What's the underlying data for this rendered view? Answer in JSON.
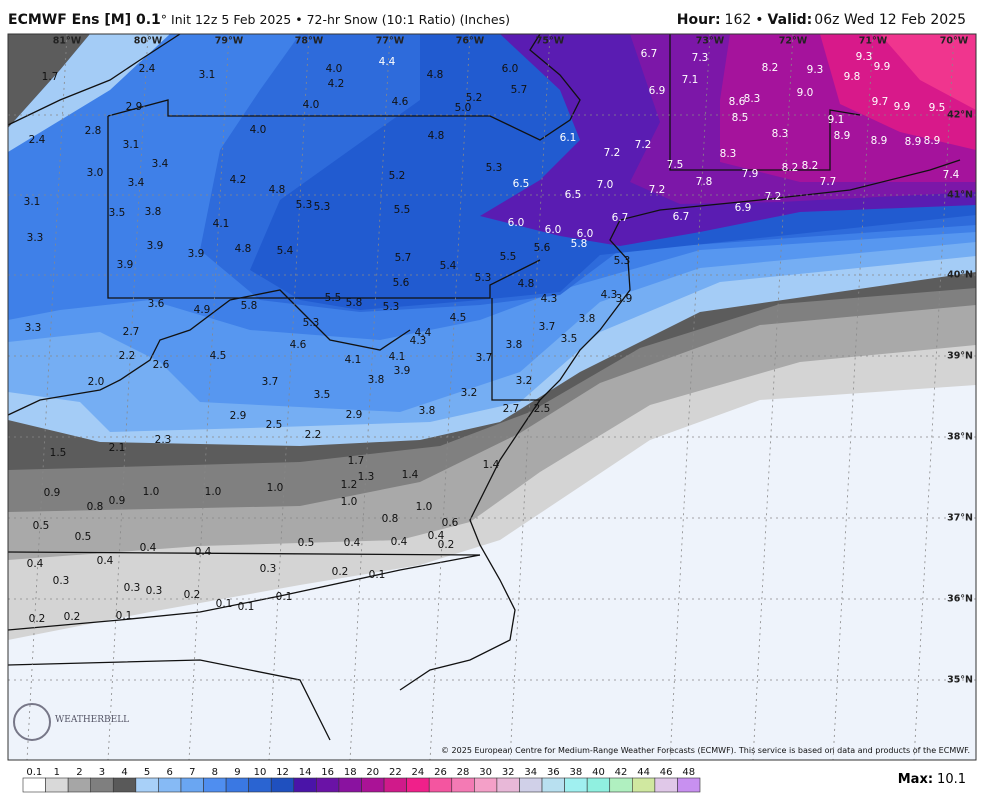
{
  "header": {
    "model": "ECMWF Ens [M] 0.1",
    "init": "° Init 12z 5 Feb 2025 • 72-hr Snow (10:1 Ratio) (Inches)",
    "hour_label": "Hour:",
    "hour": "162",
    "sep": "•",
    "valid_label": "Valid:",
    "valid": "06z Wed 12 Feb 2025"
  },
  "lon_labels": [
    "81°W",
    "80°W",
    "79°W",
    "78°W",
    "77°W",
    "76°W",
    "75°W",
    "73°W",
    "72°W",
    "71°W",
    "70°W"
  ],
  "lat_labels": [
    "42°N",
    "41°N",
    "40°N",
    "39°N",
    "38°N",
    "37°N",
    "36°N",
    "35°N"
  ],
  "map_labels": [
    "1.7",
    "2.4",
    "3.1",
    "4.0",
    "4.4",
    "4.8",
    "6.0",
    "6.7",
    "7.3",
    "8.2",
    "9.3",
    "9.9",
    "4.2",
    "5.7",
    "7.1",
    "9.3",
    "9.8",
    "4.6",
    "5.2",
    "5.0",
    "6.9",
    "9.0",
    "8.6",
    "8.3",
    "9.7",
    "9.9",
    "9.5",
    "4.0",
    "2.9",
    "2.8",
    "2.4",
    "4.0",
    "4.8",
    "6.1",
    "8.5",
    "9.1",
    "3.1",
    "7.2",
    "7.2",
    "8.3",
    "8.9",
    "8.9",
    "8.9",
    "8.9",
    "3.4",
    "8.3",
    "7.5",
    "3.0",
    "5.3",
    "5.2",
    "7.9",
    "8.2",
    "8.2",
    "7.4",
    "3.4",
    "4.2",
    "7.7",
    "6.5",
    "7.0",
    "7.2",
    "7.8",
    "4.8",
    "6.5",
    "7.2",
    "3.1",
    "5.3",
    "5.3",
    "5.5",
    "6.9",
    "3.5",
    "3.8",
    "6.7",
    "6.7",
    "4.1",
    "6.0",
    "6.0",
    "6.0",
    "5.8",
    "3.3",
    "3.9",
    "4.8",
    "5.4",
    "5.6",
    "3.9",
    "5.7",
    "5.5",
    "5.3",
    "3.9",
    "5.4",
    "5.3",
    "5.6",
    "4.8",
    "3.6",
    "4.9",
    "5.8",
    "5.5",
    "5.8",
    "5.3",
    "4.3",
    "4.3",
    "3.9",
    "5.3",
    "4.5",
    "3.8",
    "3.3",
    "2.7",
    "3.7",
    "4.6",
    "4.4",
    "4.3",
    "3.5",
    "3.8",
    "2.2",
    "4.5",
    "4.1",
    "4.1",
    "3.7",
    "2.6",
    "3.9",
    "2.0",
    "3.7",
    "3.8",
    "3.2",
    "3.5",
    "3.2",
    "2.9",
    "2.9",
    "3.8",
    "2.7",
    "2.5",
    "2.5",
    "2.2",
    "2.3",
    "2.1",
    "1.5",
    "1.7",
    "1.4",
    "1.3",
    "1.4",
    "1.2",
    "0.9",
    "1.0",
    "1.0",
    "1.0",
    "0.8",
    "0.9",
    "1.0",
    "1.0",
    "0.8",
    "0.5",
    "0.6",
    "0.5",
    "0.4",
    "0.4",
    "0.5",
    "0.4",
    "0.4",
    "0.4",
    "0.2",
    "0.4",
    "0.4",
    "0.3",
    "0.2",
    "0.1",
    "0.3",
    "0.3",
    "0.3",
    "0.2",
    "0.1",
    "0.1",
    "0.1",
    "0.2",
    "0.2",
    "0.1"
  ],
  "colorbar": {
    "labels": [
      "0.1",
      "1",
      "2",
      "3",
      "4",
      "5",
      "6",
      "7",
      "8",
      "9",
      "10",
      "12",
      "14",
      "16",
      "18",
      "20",
      "22",
      "24",
      "26",
      "28",
      "30",
      "32",
      "34",
      "36",
      "38",
      "40",
      "42",
      "44",
      "46",
      "48"
    ],
    "colors": [
      "#ffffff",
      "#d9d9d9",
      "#a6a6a6",
      "#7f7f7f",
      "#595959",
      "#a8d0f8",
      "#86baf5",
      "#6aa6f2",
      "#4f8ef0",
      "#3a78e3",
      "#2a64d2",
      "#1f50bf",
      "#4a14a8",
      "#6a12a6",
      "#8a12a0",
      "#aa1296",
      "#d01a8a",
      "#f0208a",
      "#f455a0",
      "#f47ab4",
      "#f4a0c8",
      "#e8b8d8",
      "#d0d0e8",
      "#b8e0f0",
      "#a0f0f0",
      "#90f0e0",
      "#b0f0c0",
      "#d0e8a0",
      "#e0c8e8",
      "#c890f0"
    ]
  },
  "footer": {
    "copyright": "© 2025 European Centre for Medium-Range Weather Forecasts (ECMWF). This service is based on data and products of the ECMWF.",
    "max_label": "Max:",
    "max_value": "10.1"
  },
  "logo": "WEATHERBELL"
}
